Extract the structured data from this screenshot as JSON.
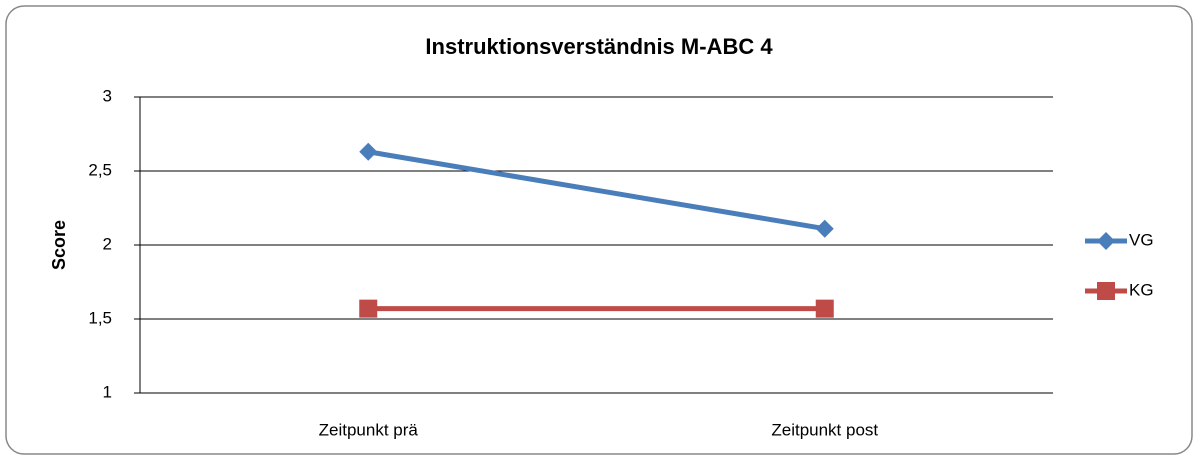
{
  "chart_data": {
    "type": "line",
    "title": "Instruktionsverständnis M-ABC 4",
    "y_label": "Score",
    "categories": [
      "Zeitpunkt prä",
      "Zeitpunkt post"
    ],
    "series": [
      {
        "name": "VG",
        "color": "#4a7ebb",
        "marker": "diamond",
        "values": [
          2.63,
          2.11
        ]
      },
      {
        "name": "KG",
        "color": "#be4b48",
        "marker": "square",
        "values": [
          1.57,
          1.57
        ]
      }
    ],
    "ylim": [
      1,
      3
    ],
    "yticks": [
      1,
      {
        "value": 1.5,
        "label": "1,5"
      },
      2,
      {
        "value": 2.5,
        "label": "2,5"
      },
      3
    ],
    "grid": true,
    "legend": "right"
  }
}
